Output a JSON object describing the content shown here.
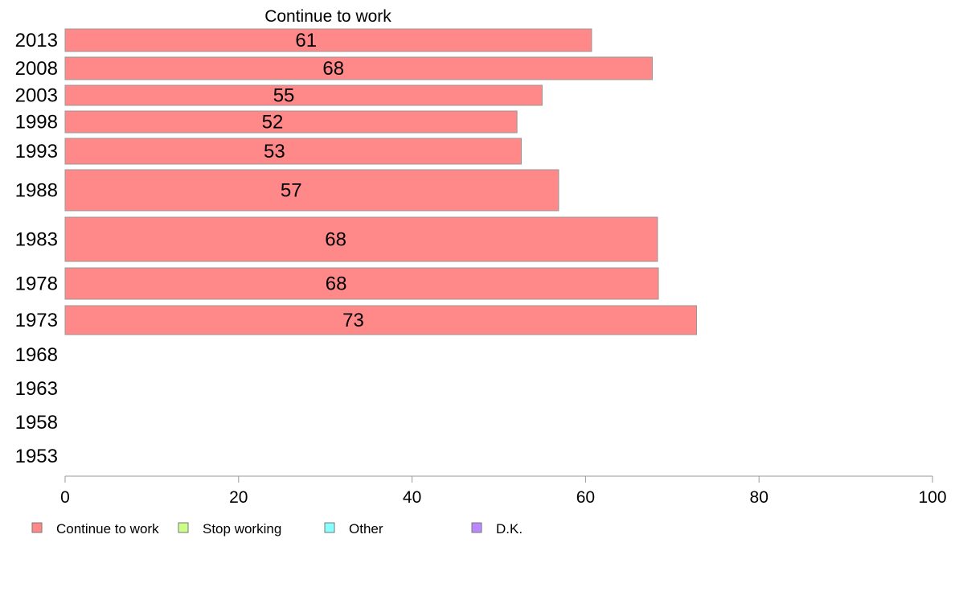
{
  "chart_data": {
    "type": "bar",
    "orientation": "horizontal",
    "title": "Continue to work",
    "xlabel": "",
    "ylabel": "",
    "xlim": [
      0,
      100
    ],
    "x_ticks": [
      "0",
      "20",
      "40",
      "60",
      "80",
      "100"
    ],
    "categories": [
      "2013",
      "2008",
      "2003",
      "1998",
      "1993",
      "1988",
      "1983",
      "1978",
      "1973",
      "1968",
      "1963",
      "1958",
      "1953"
    ],
    "series": [
      {
        "name": "Continue to work",
        "color": "#ff8888",
        "values": [
          60.7,
          67.7,
          55,
          52.1,
          52.6,
          56.9,
          68.3,
          68.4,
          72.8,
          null,
          null,
          null,
          null
        ],
        "labels": [
          "61",
          "68",
          "55",
          "52",
          "53",
          "57",
          "68",
          "68",
          "73",
          "",
          "",
          "",
          ""
        ]
      }
    ],
    "legend": {
      "position": "bottom",
      "items": [
        {
          "label": "Continue to work",
          "color": "#ff8888"
        },
        {
          "label": "Stop working",
          "color": "#ccff88"
        },
        {
          "label": "Other",
          "color": "#88ffff"
        },
        {
          "label": "D.K.",
          "color": "#bb88ff"
        }
      ]
    },
    "grid": false
  }
}
